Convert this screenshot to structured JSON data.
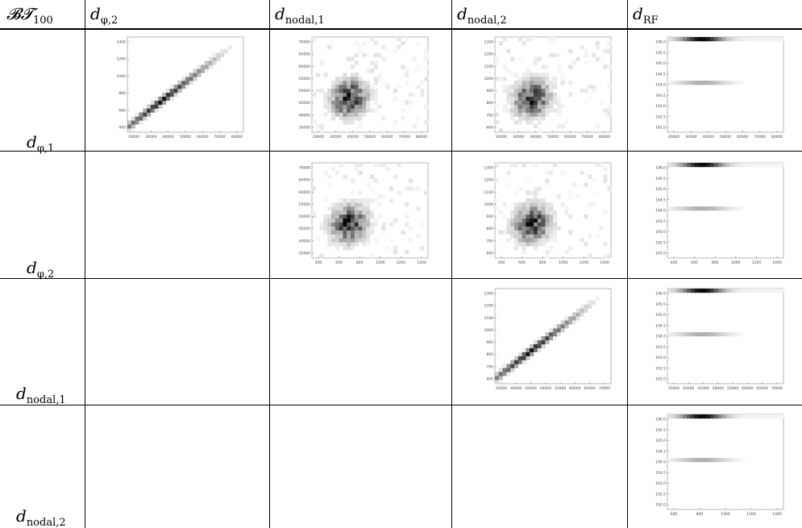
{
  "table": {
    "corner_label": {
      "main": "𝓑𝓣",
      "sub": "100"
    },
    "column_labels": [
      {
        "main": "d",
        "sub": "φ,2"
      },
      {
        "main": "d",
        "sub": "nodal,1"
      },
      {
        "main": "d",
        "sub": "nodal,2"
      },
      {
        "main": "d",
        "sub": "RF"
      }
    ],
    "row_labels": [
      {
        "main": "d",
        "sub": "φ,1"
      },
      {
        "main": "d",
        "sub": "φ,2"
      },
      {
        "main": "d",
        "sub": "nodal,1"
      },
      {
        "main": "d",
        "sub": "nodal,2"
      }
    ]
  },
  "chart_data": [
    {
      "type": "heatmap",
      "row": 0,
      "col": 0,
      "mode": "diagonal",
      "x_ticks": [
        "20000",
        "30000",
        "40000",
        "50000",
        "60000",
        "70000",
        "80000"
      ],
      "y_ticks": [
        "400",
        "600",
        "800",
        "1000",
        "1200",
        "1400"
      ]
    },
    {
      "type": "heatmap",
      "row": 0,
      "col": 1,
      "mode": "blob",
      "x_ticks": [
        "20000",
        "30000",
        "40000",
        "50000",
        "60000",
        "70000",
        "80000"
      ],
      "y_ticks": [
        "35000",
        "40000",
        "45000",
        "50000",
        "55000",
        "60000",
        "65000",
        "70000"
      ]
    },
    {
      "type": "heatmap",
      "row": 0,
      "col": 2,
      "mode": "blob",
      "x_ticks": [
        "20000",
        "30000",
        "40000",
        "50000",
        "60000",
        "70000",
        "80000"
      ],
      "y_ticks": [
        "600",
        "700",
        "800",
        "900",
        "1000",
        "1100",
        "1200",
        "1300"
      ]
    },
    {
      "type": "heatmap",
      "row": 0,
      "col": 3,
      "mode": "bands",
      "x_ticks": [
        "20000",
        "30000",
        "40000",
        "50000",
        "60000",
        "70000",
        "80000"
      ],
      "y_ticks": [
        "192.0",
        "192.5",
        "193.0",
        "193.5",
        "194.0",
        "194.5",
        "195.0",
        "195.5",
        "196.0"
      ]
    },
    {
      "type": "heatmap",
      "row": 1,
      "col": 1,
      "mode": "blob",
      "x_ticks": [
        "400",
        "600",
        "800",
        "1000",
        "1200",
        "1400"
      ],
      "y_ticks": [
        "35000",
        "40000",
        "45000",
        "50000",
        "55000",
        "60000",
        "65000",
        "70000"
      ]
    },
    {
      "type": "heatmap",
      "row": 1,
      "col": 2,
      "mode": "blob",
      "x_ticks": [
        "400",
        "600",
        "800",
        "1000",
        "1200",
        "1400"
      ],
      "y_ticks": [
        "600",
        "700",
        "800",
        "900",
        "1000",
        "1100",
        "1200",
        "1300"
      ]
    },
    {
      "type": "heatmap",
      "row": 1,
      "col": 3,
      "mode": "bands",
      "x_ticks": [
        "400",
        "600",
        "800",
        "1000",
        "1200",
        "1400"
      ],
      "y_ticks": [
        "192.0",
        "192.5",
        "193.0",
        "193.5",
        "194.0",
        "194.5",
        "195.0",
        "195.5",
        "196.0"
      ]
    },
    {
      "type": "heatmap",
      "row": 2,
      "col": 2,
      "mode": "diagonal",
      "x_ticks": [
        "35000",
        "40000",
        "45000",
        "50000",
        "55000",
        "60000",
        "65000",
        "70000"
      ],
      "y_ticks": [
        "600",
        "700",
        "800",
        "900",
        "1000",
        "1100",
        "1200",
        "1300"
      ]
    },
    {
      "type": "heatmap",
      "row": 2,
      "col": 3,
      "mode": "bands",
      "x_ticks": [
        "35000",
        "40000",
        "45000",
        "50000",
        "55000",
        "60000",
        "65000",
        "70000"
      ],
      "y_ticks": [
        "192.0",
        "192.5",
        "193.0",
        "193.5",
        "194.0",
        "194.5",
        "195.0",
        "195.5",
        "196.0"
      ]
    },
    {
      "type": "heatmap",
      "row": 3,
      "col": 3,
      "mode": "bands",
      "x_ticks": [
        "600",
        "800",
        "1000",
        "1200",
        "1400"
      ],
      "y_ticks": [
        "192.0",
        "192.5",
        "193.0",
        "193.5",
        "194.0",
        "194.5",
        "195.0",
        "195.5",
        "196.0"
      ]
    }
  ]
}
